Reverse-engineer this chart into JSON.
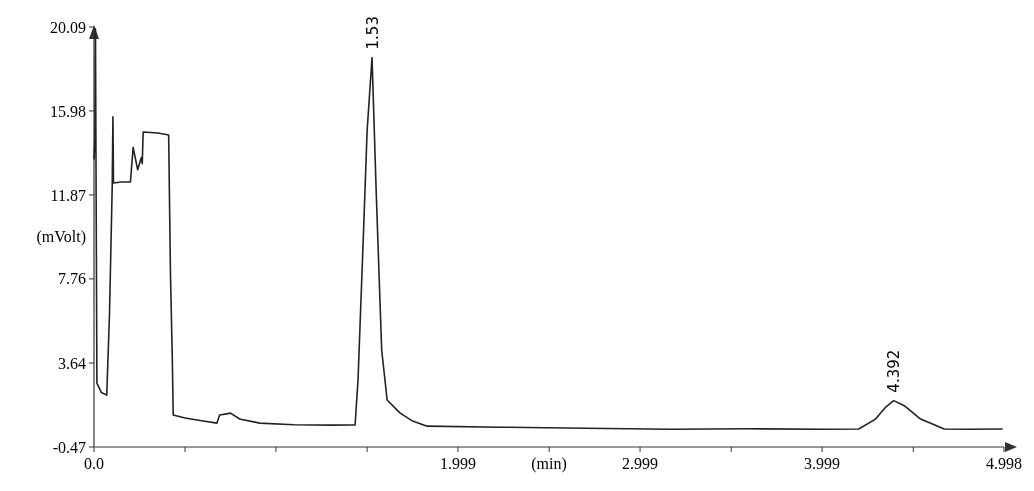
{
  "chart_data": {
    "type": "line",
    "xlabel": "(min)",
    "ylabel": "(mVolt)",
    "xlim": [
      0,
      4.998
    ],
    "ylim": [
      -0.47,
      20.09
    ],
    "xticks": [
      {
        "value": 0,
        "label": "0.0"
      },
      {
        "value": 0.5,
        "label": null
      },
      {
        "value": 0.999,
        "label": null
      },
      {
        "value": 1.5,
        "label": null
      },
      1.999,
      {
        "value": 2.5,
        "label": null
      },
      2.999,
      {
        "value": 3.5,
        "label": null
      },
      3.999,
      {
        "value": 4.5,
        "label": null
      },
      4.998
    ],
    "yticks": [
      -0.47,
      3.64,
      7.76,
      11.87,
      15.98,
      20.09
    ],
    "grid": false,
    "marker": "none",
    "line_style": "solid",
    "annotations": [
      {
        "text": "1.53",
        "x": 1.53,
        "y": 18.6
      },
      {
        "text": "4.392",
        "x": 4.392,
        "y": 1.8
      }
    ],
    "series": [
      {
        "color": "#222222",
        "x": [
          0,
          0.005,
          0.008,
          0.016,
          0.04,
          0.07,
          0.085,
          0.1,
          0.104,
          0.107,
          0.15,
          0.2,
          0.215,
          0.24,
          0.26,
          0.265,
          0.27,
          0.35,
          0.41,
          0.42,
          0.43,
          0.435,
          0.5,
          0.6,
          0.675,
          0.69,
          0.75,
          0.8,
          0.91,
          1.1,
          1.3,
          1.41,
          1.434,
          1.45,
          1.48,
          1.5,
          1.527,
          1.55,
          1.58,
          1.61,
          1.68,
          1.75,
          1.83,
          2.23,
          2.7,
          3.17,
          3.6,
          4.0,
          4.2,
          4.29,
          4.35,
          4.392,
          4.45,
          4.54,
          4.67,
          4.8,
          4.99
        ],
        "values": [
          13.6,
          14.6,
          20.0,
          2.66,
          2.2,
          2.07,
          6.0,
          12.26,
          15.7,
          12.45,
          12.5,
          12.5,
          14.2,
          13.1,
          13.7,
          13.4,
          14.95,
          14.9,
          14.8,
          8.0,
          3.9,
          1.1,
          0.95,
          0.8,
          0.7,
          1.1,
          1.19,
          0.9,
          0.7,
          0.62,
          0.6,
          0.61,
          0.61,
          2.8,
          10.0,
          15.0,
          18.6,
          12.0,
          4.28,
          1.83,
          1.2,
          0.8,
          0.55,
          0.5,
          0.45,
          0.4,
          0.42,
          0.4,
          0.41,
          0.88,
          1.5,
          1.8,
          1.55,
          0.9,
          0.41,
          0.4,
          0.41
        ]
      }
    ]
  }
}
